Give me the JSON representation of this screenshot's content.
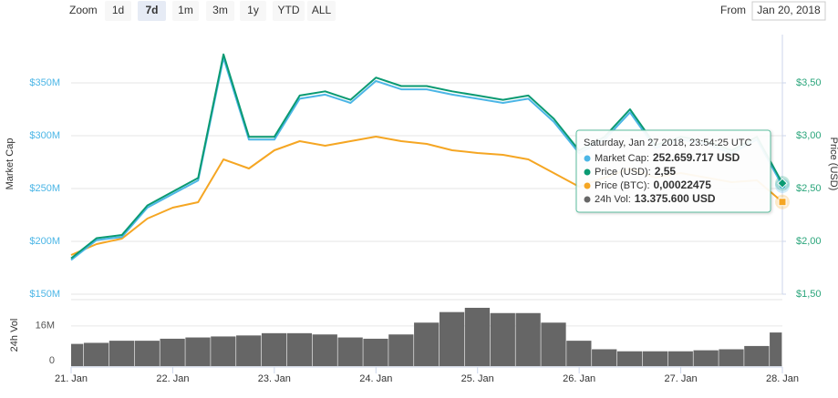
{
  "range_selector": {
    "zoom_label": "Zoom",
    "buttons": [
      "1d",
      "7d",
      "1m",
      "3m",
      "1y",
      "YTD",
      "ALL"
    ],
    "selected": "7d",
    "from_label": "From",
    "from_value": "Jan 20, 2018"
  },
  "chart_data": {
    "type": "line",
    "y_label": "Market Cap",
    "y2_label": "Price (USD)",
    "y4_label": "24h Vol",
    "xlim": [
      21,
      28
    ],
    "xticks": [
      {
        "value": 21,
        "label": "21. Jan"
      },
      {
        "value": 22,
        "label": "22. Jan"
      },
      {
        "value": 23,
        "label": "23. Jan"
      },
      {
        "value": 24,
        "label": "24. Jan"
      },
      {
        "value": 25,
        "label": "25. Jan"
      },
      {
        "value": 26,
        "label": "26. Jan"
      },
      {
        "value": 27,
        "label": "27. Jan"
      },
      {
        "value": 28,
        "label": "28. Jan"
      }
    ],
    "ylim": [
      150000000,
      400000000
    ],
    "yticks": [
      {
        "value": 150000000,
        "label": "$150M"
      },
      {
        "value": 200000000,
        "label": "$200M"
      },
      {
        "value": 250000000,
        "label": "$250M"
      },
      {
        "value": 300000000,
        "label": "$300M"
      },
      {
        "value": 350000000,
        "label": "$350M"
      }
    ],
    "y2lim": [
      1.5,
      4.0
    ],
    "y2ticks": [
      {
        "value": 1.5,
        "label": "$1,50"
      },
      {
        "value": 2,
        "label": "$2,00"
      },
      {
        "value": 2.5,
        "label": "$2,50"
      },
      {
        "value": 3,
        "label": "$3,00"
      },
      {
        "value": 3.5,
        "label": "$3,50"
      }
    ],
    "y3lim": [
      0.00012,
      0.00042
    ],
    "y4lim": [
      0,
      25000000
    ],
    "y4ticks": [
      0,
      {
        "value": 16000000,
        "label": "16M"
      }
    ],
    "grid": true,
    "x": [
      21,
      21.25,
      21.5,
      21.75,
      22,
      22.25,
      22.5,
      22.75,
      23,
      23.25,
      23.5,
      23.75,
      24,
      24.25,
      24.5,
      24.75,
      25,
      25.25,
      25.5,
      25.75,
      26,
      26.25,
      26.5,
      26.75,
      27,
      27.25,
      27.5,
      27.75,
      28
    ],
    "series": [
      {
        "name": "Market Cap",
        "color": "#4cb6e6",
        "axis": "y",
        "values": [
          182300000,
          201200000,
          204100000,
          231900000,
          244800000,
          257700000,
          373600000,
          296300000,
          296300000,
          335000000,
          338900000,
          331000000,
          351800000,
          343900000,
          343900000,
          338900000,
          335000000,
          331000000,
          335000000,
          313200000,
          283400000,
          296300000,
          322100000,
          288400000,
          296300000,
          292300000,
          283400000,
          296300000,
          252659717
        ]
      },
      {
        "name": "Price (USD)",
        "color": "#0a9a72",
        "axis": "y2",
        "values": [
          1.84,
          2.03,
          2.06,
          2.34,
          2.47,
          2.6,
          3.77,
          2.99,
          2.99,
          3.38,
          3.42,
          3.34,
          3.55,
          3.47,
          3.47,
          3.42,
          3.38,
          3.34,
          3.38,
          3.16,
          2.86,
          2.99,
          3.25,
          2.91,
          2.99,
          2.95,
          2.86,
          2.99,
          2.55
        ]
      },
      {
        "name": "Price (BTC)",
        "color": "#f5a623",
        "axis": "y3",
        "values": [
          0.0001645,
          0.0001769,
          0.0001831,
          0.0002059,
          0.0002183,
          0.0002245,
          0.0002731,
          0.0002628,
          0.0002834,
          0.0002938,
          0.0002886,
          0.0002938,
          0.000299,
          0.0002938,
          0.0002907,
          0.0002834,
          0.0002803,
          0.0002783,
          0.0002731,
          0.0002576,
          0.0002421,
          0.0002524,
          0.0002628,
          0.0002524,
          0.0002576,
          0.0002524,
          0.0002472,
          0.0002493,
          0.00022475
        ]
      },
      {
        "name": "24h Vol",
        "color": "#666666",
        "axis": "y4",
        "kind": "bar",
        "values": [
          8840000,
          9260000,
          10100000,
          10100000,
          10900000,
          11400000,
          11800000,
          12200000,
          13100000,
          13100000,
          12600000,
          11400000,
          10900000,
          12600000,
          17300000,
          21500000,
          23200000,
          21100000,
          21100000,
          17300000,
          10100000,
          6700000,
          5900000,
          5900000,
          5900000,
          6300000,
          6700000,
          8000000,
          13375600
        ]
      }
    ],
    "tooltip": {
      "header": "Saturday, Jan 27 2018, 23:54:25 UTC",
      "rows": [
        {
          "label": "Market Cap:",
          "value": "252.659.717 USD"
        },
        {
          "label": "Price (USD):",
          "value": "2,55"
        },
        {
          "label": "Price (BTC):",
          "value": "0,00022475"
        },
        {
          "label": "24h Vol:",
          "value": "13.375.600 USD"
        }
      ]
    }
  }
}
